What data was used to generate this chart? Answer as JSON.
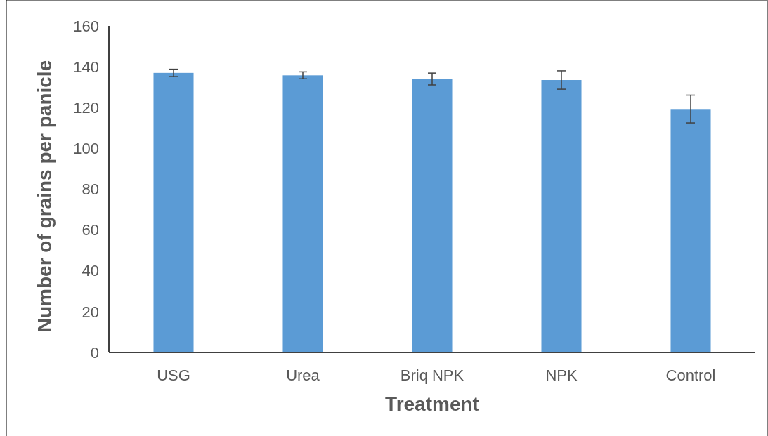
{
  "chart_data": {
    "type": "bar",
    "xlabel": "Treatment",
    "ylabel": "Number of grains per panicle",
    "categories": [
      "USG",
      "Urea",
      "Briq NPK",
      "NPK",
      "Control"
    ],
    "values": [
      137,
      135.8,
      134,
      133.5,
      119.3
    ],
    "errors": [
      1.8,
      1.7,
      2.9,
      4.5,
      6.8
    ],
    "color": "#5b9bd5",
    "ylim": [
      0,
      160
    ],
    "yticks": [
      0,
      20,
      40,
      60,
      80,
      100,
      120,
      140,
      160
    ],
    "grid": false
  }
}
